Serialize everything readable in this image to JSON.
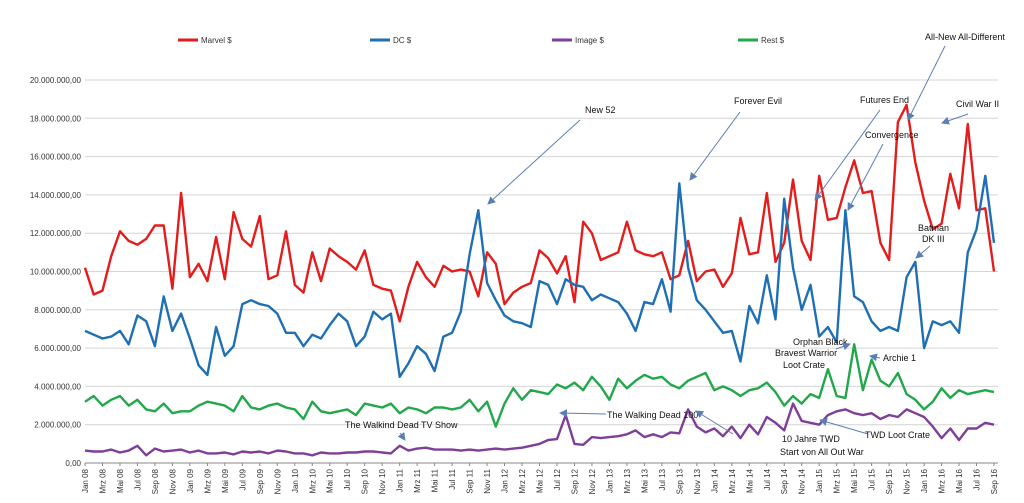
{
  "chart_data": {
    "type": "line",
    "title": "",
    "xlabel": "",
    "ylabel": "",
    "ylim": [
      0,
      20000000
    ],
    "yticks": [
      0,
      2000000,
      4000000,
      6000000,
      8000000,
      10000000,
      12000000,
      14000000,
      16000000,
      18000000,
      20000000
    ],
    "ytick_labels": [
      "0,00",
      "2.000.000,00",
      "4.000.000,00",
      "6.000.000,00",
      "8.000.000,00",
      "10.000.000,00",
      "12.000.000,00",
      "14.000.000,00",
      "16.000.000,00",
      "18.000.000,00",
      "20.000.000,00"
    ],
    "grid": true,
    "legend_position": "top",
    "x": [
      "Jan 08",
      "Feb 08",
      "Mrz 08",
      "Apr 08",
      "Mai 08",
      "Jun 08",
      "Jul 08",
      "Aug 08",
      "Sep 08",
      "Okt 08",
      "Nov 08",
      "Dez 08",
      "Jan 09",
      "Feb 09",
      "Mrz 09",
      "Apr 09",
      "Mai 09",
      "Jun 09",
      "Jul 09",
      "Aug 09",
      "Sep 09",
      "Okt 09",
      "Nov 09",
      "Dez 09",
      "Jan 10",
      "Feb 10",
      "Mrz 10",
      "Apr 10",
      "Mai 10",
      "Jun 10",
      "Jul 10",
      "Aug 10",
      "Sep 10",
      "Okt 10",
      "Nov 10",
      "Dez 10",
      "Jan 11",
      "Feb 11",
      "Mrz 11",
      "Apr 11",
      "Mai 11",
      "Jun 11",
      "Jul 11",
      "Aug 11",
      "Sep 11",
      "Okt 11",
      "Nov 11",
      "Dez 11",
      "Jan 12",
      "Feb 12",
      "Mrz 12",
      "Apr 12",
      "Mai 12",
      "Jun 12",
      "Jul 12",
      "Aug 12",
      "Sep 12",
      "Okt 12",
      "Nov 12",
      "Dez 12",
      "Jan 13",
      "Feb 13",
      "Mrz 13",
      "Apr 13",
      "Mai 13",
      "Jun 13",
      "Jul 13",
      "Aug 13",
      "Sep 13",
      "Okt 13",
      "Nov 13",
      "Dez 13",
      "Jan 14",
      "Feb 14",
      "Mrz 14",
      "Apr 14",
      "Mai 14",
      "Jun 14",
      "Jul 14",
      "Aug 14",
      "Sep 14",
      "Okt 14",
      "Nov 14",
      "Dez 14",
      "Jan 15",
      "Feb 15",
      "Mrz 15",
      "Apr 15",
      "Mai 15",
      "Jun 15",
      "Jul 15",
      "Aug 15",
      "Sep 15",
      "Okt 15",
      "Nov 15",
      "Dez 15",
      "Jan 16",
      "Feb 16",
      "Mrz 16",
      "Apr 16",
      "Mai 16",
      "Jun 16",
      "Jul 16",
      "Aug 16",
      "Sep 16"
    ],
    "x_tick_labels": [
      "Jan 08",
      "Mrz 08",
      "Mai 08",
      "Jul 08",
      "Sep 08",
      "Nov 08",
      "Jan 09",
      "Mrz 09",
      "Mai 09",
      "Jul 09",
      "Sep 09",
      "Nov 09",
      "Jan 10",
      "Mrz 10",
      "Mai 10",
      "Jul 10",
      "Sep 10",
      "Nov 10",
      "Jan 11",
      "Mrz 11",
      "Mai 11",
      "Jul 11",
      "Sep 11",
      "Nov 11",
      "Jan 12",
      "Mrz 12",
      "Mai 12",
      "Jul 12",
      "Sep 12",
      "Nov 12",
      "Jan 13",
      "Mrz 13",
      "Mai 13",
      "Jul 13",
      "Sep 13",
      "Nov 13",
      "Jan 14",
      "Mrz 14",
      "Mai 14",
      "Jul 14",
      "Sep 14",
      "Nov 14",
      "Jan 15",
      "Mrz 15",
      "Mai 15",
      "Jul 15",
      "Sep 15",
      "Nov 15",
      "Jan 16",
      "Mrz 16",
      "Mai 16",
      "Jul 16",
      "Sep 16"
    ],
    "series": [
      {
        "name": "Marvel $",
        "color": "#e31c1c",
        "values": [
          10200000,
          8800000,
          9000000,
          10800000,
          12100000,
          11600000,
          11400000,
          11700000,
          12400000,
          12400000,
          9100000,
          14100000,
          9700000,
          10400000,
          9500000,
          11800000,
          9600000,
          13100000,
          11700000,
          11300000,
          12900000,
          9600000,
          9800000,
          12100000,
          9300000,
          8900000,
          11000000,
          9500000,
          11200000,
          10800000,
          10500000,
          10100000,
          11100000,
          9300000,
          9100000,
          9000000,
          7400000,
          9200000,
          10500000,
          9700000,
          9200000,
          10300000,
          10000000,
          10100000,
          10000000,
          8700000,
          11000000,
          10400000,
          8300000,
          8900000,
          9200000,
          9400000,
          11100000,
          10700000,
          9900000,
          10800000,
          8400000,
          12600000,
          12000000,
          10600000,
          10800000,
          11000000,
          12600000,
          11100000,
          10900000,
          10800000,
          11000000,
          9600000,
          9800000,
          11600000,
          9500000,
          10000000,
          10100000,
          9200000,
          9900000,
          12800000,
          10900000,
          11000000,
          14100000,
          10500000,
          11500000,
          14800000,
          11600000,
          10600000,
          15000000,
          12700000,
          12800000,
          14400000,
          15800000,
          14100000,
          14200000,
          11500000,
          10600000,
          17800000,
          18700000,
          15700000,
          13700000,
          12200000,
          12500000,
          15100000,
          13300000,
          17700000,
          13200000,
          13300000,
          10000000
        ]
      },
      {
        "name": "DC $",
        "color": "#1f6fb4",
        "values": [
          6900000,
          6700000,
          6500000,
          6600000,
          6900000,
          6200000,
          7700000,
          7400000,
          6100000,
          8700000,
          6900000,
          7800000,
          6500000,
          5100000,
          4600000,
          7100000,
          5600000,
          6100000,
          8300000,
          8500000,
          8300000,
          8200000,
          7800000,
          6800000,
          6800000,
          6100000,
          6700000,
          6500000,
          7200000,
          7800000,
          7400000,
          6100000,
          6600000,
          7900000,
          7500000,
          7800000,
          4500000,
          5200000,
          6100000,
          5700000,
          4800000,
          6600000,
          6800000,
          7900000,
          10900000,
          13200000,
          9400000,
          8500000,
          7700000,
          7400000,
          7300000,
          7100000,
          9500000,
          9300000,
          8300000,
          9600000,
          9300000,
          9200000,
          8500000,
          8800000,
          8600000,
          8400000,
          7800000,
          6900000,
          8400000,
          8300000,
          9600000,
          7900000,
          14600000,
          10200000,
          8500000,
          8000000,
          7400000,
          6800000,
          6900000,
          5300000,
          8200000,
          7300000,
          9800000,
          7500000,
          13800000,
          10200000,
          8000000,
          9300000,
          6600000,
          7100000,
          6300000,
          13200000,
          8700000,
          8400000,
          7400000,
          6900000,
          7100000,
          6900000,
          9700000,
          10500000,
          6000000,
          7400000,
          7200000,
          7400000,
          6800000,
          11000000,
          12200000,
          15000000,
          11500000
        ]
      },
      {
        "name": "Image $",
        "color": "#7f3f98",
        "values": [
          650000,
          600000,
          600000,
          700000,
          550000,
          650000,
          900000,
          400000,
          750000,
          600000,
          650000,
          700000,
          550000,
          650000,
          500000,
          500000,
          550000,
          450000,
          600000,
          550000,
          600000,
          500000,
          650000,
          600000,
          500000,
          500000,
          400000,
          550000,
          500000,
          500000,
          550000,
          550000,
          600000,
          600000,
          550000,
          500000,
          900000,
          650000,
          750000,
          800000,
          700000,
          700000,
          700000,
          650000,
          700000,
          650000,
          700000,
          750000,
          700000,
          750000,
          800000,
          900000,
          1000000,
          1200000,
          1250000,
          2500000,
          1000000,
          950000,
          1350000,
          1300000,
          1350000,
          1400000,
          1500000,
          1700000,
          1350000,
          1500000,
          1350000,
          1600000,
          1550000,
          2800000,
          1900000,
          1600000,
          1800000,
          1400000,
          1900000,
          1300000,
          2000000,
          1500000,
          2400000,
          2100000,
          1700000,
          3100000,
          2200000,
          2100000,
          2000000,
          2500000,
          2700000,
          2800000,
          2600000,
          2500000,
          2600000,
          2300000,
          2500000,
          2400000,
          2800000,
          2600000,
          2400000,
          1900000,
          1300000,
          1800000,
          1200000,
          1800000,
          1800000,
          2100000,
          2000000
        ]
      },
      {
        "name": "Rest $",
        "color": "#22a84b",
        "values": [
          3200000,
          3500000,
          3000000,
          3300000,
          3500000,
          3000000,
          3300000,
          2800000,
          2700000,
          3100000,
          2600000,
          2700000,
          2700000,
          3000000,
          3200000,
          3100000,
          3000000,
          2700000,
          3500000,
          2900000,
          2800000,
          3000000,
          3100000,
          2900000,
          2800000,
          2300000,
          3200000,
          2700000,
          2600000,
          2700000,
          2800000,
          2500000,
          3100000,
          3000000,
          2900000,
          3100000,
          2600000,
          2900000,
          2800000,
          2600000,
          2900000,
          2900000,
          2800000,
          2900000,
          3300000,
          2700000,
          3200000,
          1900000,
          3100000,
          3900000,
          3300000,
          3800000,
          3700000,
          3600000,
          4100000,
          3900000,
          4200000,
          3800000,
          4500000,
          4000000,
          3300000,
          4400000,
          3900000,
          4300000,
          4600000,
          4400000,
          4500000,
          4100000,
          3900000,
          4300000,
          4500000,
          4700000,
          3800000,
          4000000,
          3800000,
          3500000,
          3800000,
          3900000,
          4200000,
          3700000,
          3000000,
          3500000,
          3100000,
          3600000,
          3400000,
          4900000,
          3500000,
          3400000,
          6200000,
          3800000,
          5400000,
          4300000,
          4000000,
          4700000,
          3600000,
          3300000,
          2800000,
          3200000,
          3900000,
          3400000,
          3800000,
          3600000,
          3700000,
          3800000,
          3700000
        ]
      }
    ],
    "annotations": [
      {
        "text": "New 52"
      },
      {
        "text": "Forever Evil"
      },
      {
        "text": "Futures End"
      },
      {
        "text": "All-New All-Different"
      },
      {
        "text": "Civil War II"
      },
      {
        "text": "Convergence"
      },
      {
        "text": "Batman"
      },
      {
        "text": "DK III"
      },
      {
        "text": "Orphan Black"
      },
      {
        "text": "Bravest Warrior"
      },
      {
        "text": "Loot Crate"
      },
      {
        "text": "Archie 1"
      },
      {
        "text": "The Walkind Dead TV Show"
      },
      {
        "text": "The Walking Dead 100"
      },
      {
        "text": "10 Jahre TWD"
      },
      {
        "text": "Start von  All Out War"
      },
      {
        "text": "TWD Loot Crate"
      }
    ]
  }
}
